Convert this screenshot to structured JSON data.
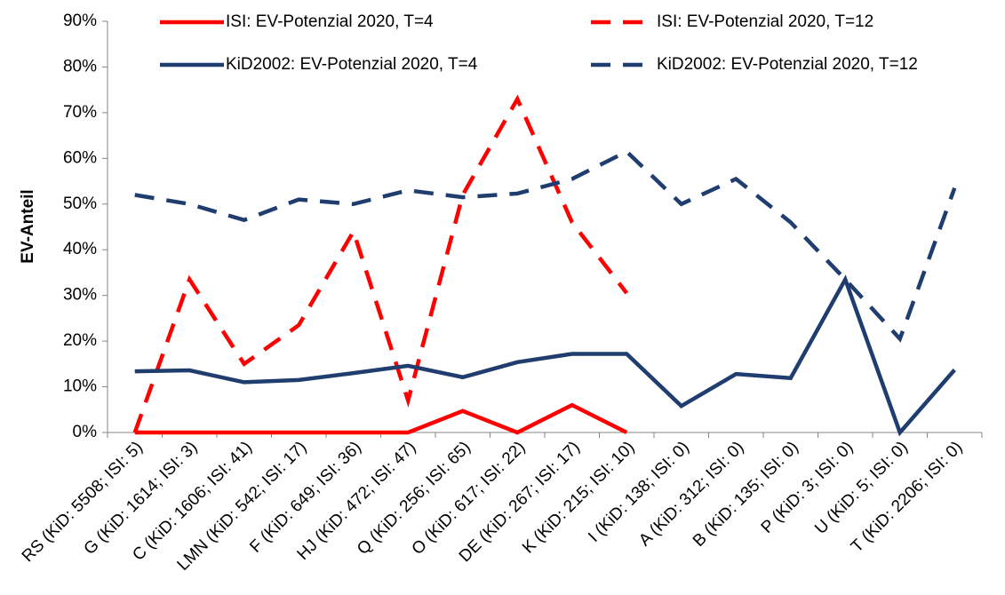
{
  "chart_data": {
    "type": "line",
    "y_label": "EV-Anteil",
    "categories": [
      "RS (KiD: 5508; ISI: 5)",
      "G (KiD: 1614; ISI: 3)",
      "C (KiD: 1606; ISI: 41)",
      "LMN (KiD: 542; ISI: 17)",
      "F (KiD: 649; ISI: 36)",
      "HJ (KiD: 472; ISI: 47)",
      "Q (KiD: 256; ISI: 65)",
      "O (KiD: 617; ISI: 22)",
      "DE (KiD: 267; ISI: 17)",
      "K (KiD: 215; ISI: 10)",
      "I (KiD: 138; ISI: 0)",
      "A (KiD: 312; ISI: 0)",
      "B (KiD: 135; ISI: 0)",
      "P (KiD: 3; ISI: 0)",
      "U (KiD: 5; ISI: 0)",
      "T (KiD: 2206; ISI: 0)"
    ],
    "series": [
      {
        "name": "ISI: EV-Potenzial 2020, T=4",
        "color": "#ff0000",
        "dashed": false,
        "values": [
          0,
          0,
          0,
          0,
          0,
          0,
          4.7,
          0,
          6,
          0,
          null,
          null,
          null,
          null,
          null,
          null
        ]
      },
      {
        "name": "ISI: EV-Potenzial 2020, T=12",
        "color": "#ff0000",
        "dashed": true,
        "values": [
          0,
          33.5,
          15,
          23.5,
          44,
          7,
          52,
          73,
          46,
          30.5,
          null,
          null,
          null,
          null,
          null,
          null
        ]
      },
      {
        "name": "KiD2002: EV-Potenzial 2020, T=4",
        "color": "#1f3d6e",
        "dashed": false,
        "values": [
          13.4,
          13.6,
          11,
          11.5,
          13,
          14.6,
          12.1,
          15.4,
          17.2,
          17.2,
          5.8,
          12.8,
          11.9,
          33.5,
          0,
          13.7
        ]
      },
      {
        "name": "KiD2002: EV-Potenzial 2020, T=12",
        "color": "#1f3d6e",
        "dashed": true,
        "values": [
          52,
          50,
          46.5,
          51,
          50,
          53,
          51.5,
          52.3,
          55.5,
          61.5,
          50,
          55.5,
          46,
          33.5,
          20.5,
          53.5
        ]
      }
    ],
    "ylim": [
      0,
      90
    ],
    "yticks": [
      {
        "value": 0,
        "label": "0%"
      },
      {
        "value": 10,
        "label": "10%"
      },
      {
        "value": 20,
        "label": "20%"
      },
      {
        "value": 30,
        "label": "30%"
      },
      {
        "value": 40,
        "label": "40%"
      },
      {
        "value": 50,
        "label": "50%"
      },
      {
        "value": 60,
        "label": "60%"
      },
      {
        "value": 70,
        "label": "70%"
      },
      {
        "value": 80,
        "label": "80%"
      },
      {
        "value": 90,
        "label": "90%"
      }
    ],
    "grid": false
  }
}
